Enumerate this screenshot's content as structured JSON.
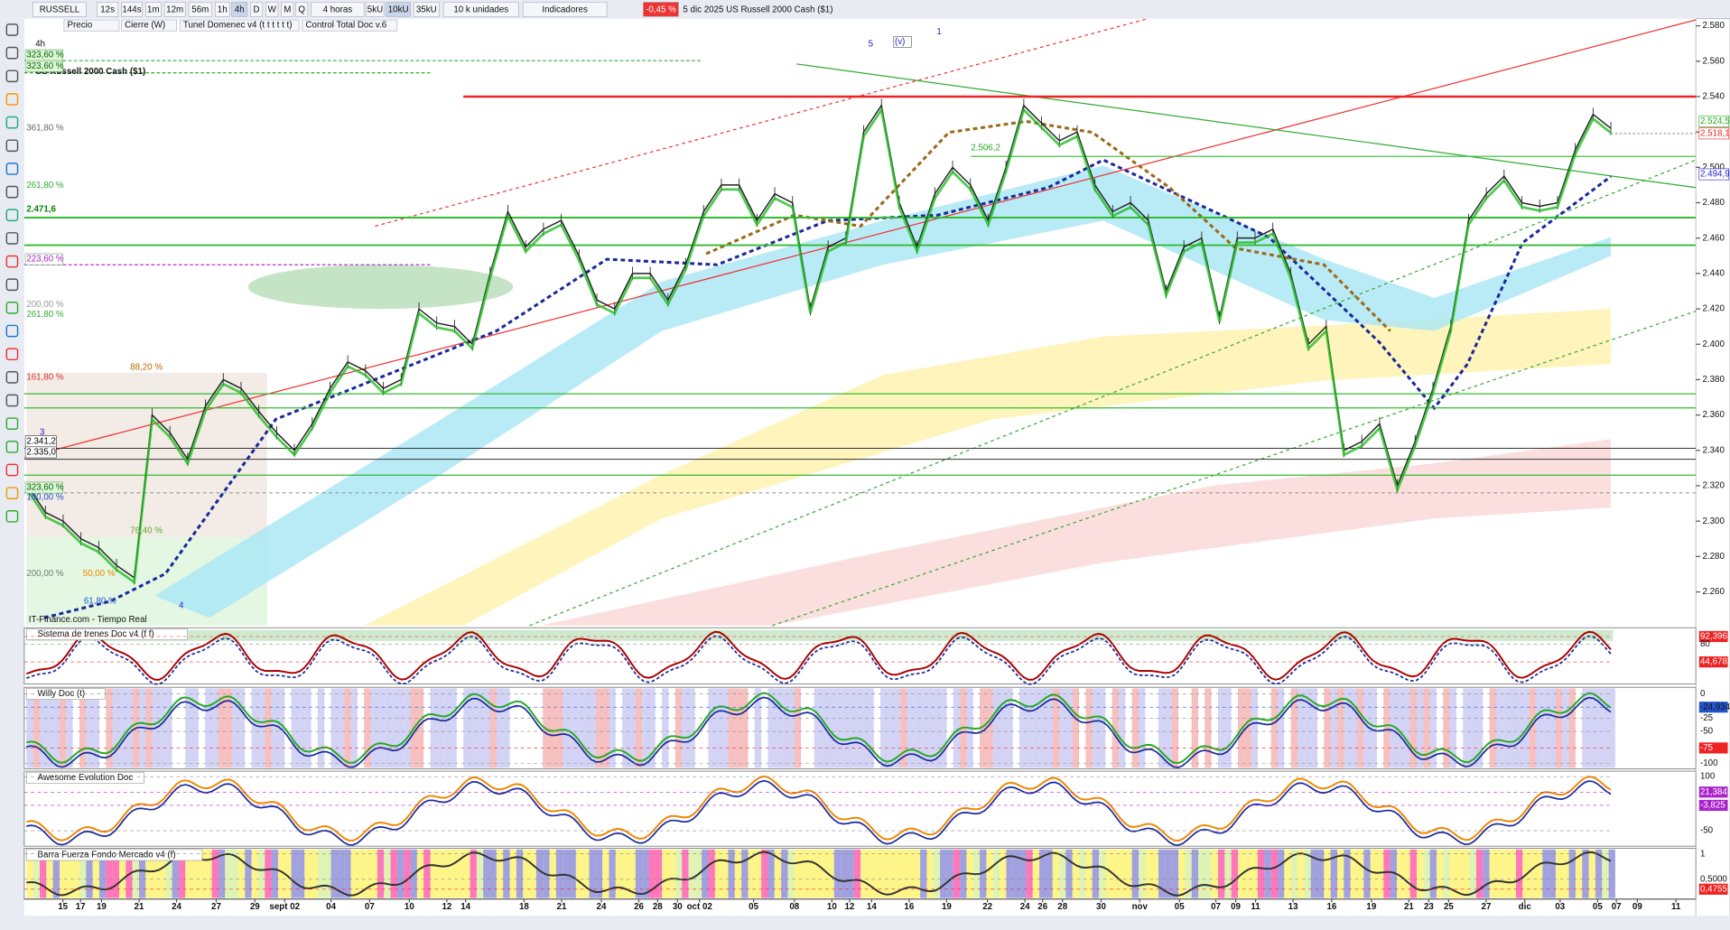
{
  "toolbar": {
    "symbol": "RUSSELL",
    "intervals": [
      "12s",
      "144s",
      "1m",
      "12m",
      "56m",
      "1h",
      "4h",
      "D",
      "W",
      "M",
      "Q"
    ],
    "period": "4 horas",
    "units": [
      "5kU",
      "10kU",
      "35kU"
    ],
    "unit_size": "10 k unidades",
    "indicators": "Indicadores",
    "change": "-0,45 %",
    "info": "5 dic 2025  US Russell 2000 Cash ($1)"
  },
  "overlays": [
    "Precio",
    "Cierre (W)",
    "Tunel Domenec v4 (t t t t t t)",
    "Control Total Doc v.6"
  ],
  "main_chart": {
    "timeframe": "4h",
    "title": "US Russell 2000 Cash ($1)",
    "source": "IT-Finance.com - Tiempo Real",
    "ylim": [
      2241,
      2584
    ],
    "yticks": [
      {
        "value": 2260,
        "label": "2.260"
      },
      {
        "value": 2280,
        "label": "2.280"
      },
      {
        "value": 2300,
        "label": "2.300"
      },
      {
        "value": 2320,
        "label": "2.320"
      },
      {
        "value": 2340,
        "label": "2.340"
      },
      {
        "value": 2360,
        "label": "2.360"
      },
      {
        "value": 2380,
        "label": "2.380"
      },
      {
        "value": 2400,
        "label": "2.400"
      },
      {
        "value": 2420,
        "label": "2.420"
      },
      {
        "value": 2440,
        "label": "2.440"
      },
      {
        "value": 2460,
        "label": "2.460"
      },
      {
        "value": 2480,
        "label": "2.480"
      },
      {
        "value": 2500,
        "label": "2.500"
      },
      {
        "value": 2520,
        "label": "2.520"
      },
      {
        "value": 2540,
        "label": "2.540"
      },
      {
        "value": 2560,
        "label": "2.560"
      },
      {
        "value": 2580,
        "label": "2.580"
      }
    ],
    "price": [
      2320,
      2305,
      2300,
      2290,
      2285,
      2275,
      2268,
      2360,
      2350,
      2335,
      2365,
      2380,
      2375,
      2362,
      2350,
      2340,
      2355,
      2375,
      2390,
      2385,
      2375,
      2380,
      2420,
      2412,
      2410,
      2400,
      2440,
      2475,
      2455,
      2465,
      2470,
      2450,
      2425,
      2420,
      2440,
      2440,
      2425,
      2445,
      2475,
      2490,
      2490,
      2470,
      2485,
      2480,
      2420,
      2455,
      2460,
      2520,
      2535,
      2480,
      2455,
      2485,
      2500,
      2490,
      2470,
      2500,
      2535,
      2525,
      2515,
      2520,
      2490,
      2475,
      2480,
      2470,
      2430,
      2455,
      2460,
      2415,
      2460,
      2460,
      2465,
      2440,
      2400,
      2410,
      2340,
      2345,
      2355,
      2320,
      2345,
      2375,
      2410,
      2470,
      2485,
      2495,
      2480,
      2478,
      2480,
      2510,
      2530,
      2522
    ],
    "levels": [
      2540,
      2506.2,
      2471.6,
      2456,
      2372,
      2364,
      2341.2,
      2335,
      2326,
      2316
    ],
    "level_labels": [
      "2.506,2",
      "2.471,6",
      "2.341,2",
      "2.335,0"
    ],
    "fib_labels": [
      "323,60 %",
      "323,60 %",
      "361,80 %",
      "261,80 %",
      "223,60 %",
      "200,00 %",
      "261,80 %",
      "161,80 %",
      "88,20 %",
      "323,60 %",
      "100,00 %",
      "76,40 %",
      "200,00 %",
      "50,00 %",
      "61,80 %"
    ],
    "wave_labels": [
      "5",
      "(v)",
      "1",
      "3",
      "4"
    ],
    "price_labels": [
      "2.524,5",
      "2.518,1",
      "2.494,9"
    ]
  },
  "panels": [
    {
      "title": "Sistema de trenes Doc v4 (f f)",
      "axis_labels": [
        "92,396",
        "80",
        "44,678"
      ]
    },
    {
      "title": "Willy Doc (t)",
      "axis_labels": [
        "0",
        "-24,934",
        "-25",
        "-50",
        "-75",
        "-100"
      ]
    },
    {
      "title": "Awesome Evolution Doc",
      "axis_labels": [
        "100",
        "21,384",
        "-3,825",
        "-50"
      ]
    },
    {
      "title": "Barra Fuerza Fondo Mercado v4 (f)",
      "axis_labels": [
        "1",
        "0,5000",
        "0,4755"
      ]
    }
  ],
  "date_axis": {
    "labels": [
      "15",
      "17",
      "19",
      "21",
      "24",
      "27",
      "29",
      "sept 02",
      "04",
      "07",
      "10",
      "12",
      "14",
      "18",
      "21",
      "24",
      "26",
      "28",
      "30",
      "oct 02",
      "05",
      "08",
      "10",
      "12",
      "14",
      "16",
      "19",
      "22",
      "24",
      "26",
      "28",
      "30",
      "nov",
      "05",
      "07",
      "09",
      "11",
      "13",
      "16",
      "19",
      "21",
      "23",
      "25",
      "27",
      "dic",
      "03",
      "05",
      "07",
      "09",
      "11"
    ]
  }
}
